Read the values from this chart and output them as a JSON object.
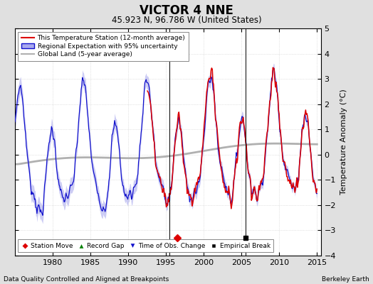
{
  "title": "VICTOR 4 NNE",
  "subtitle": "45.923 N, 96.786 W (United States)",
  "xlabel_left": "Data Quality Controlled and Aligned at Breakpoints",
  "xlabel_right": "Berkeley Earth",
  "ylabel": "Temperature Anomaly (°C)",
  "xlim": [
    1975,
    2015.5
  ],
  "ylim": [
    -4,
    5
  ],
  "yticks": [
    -4,
    -3,
    -2,
    -1,
    0,
    1,
    2,
    3,
    4,
    5
  ],
  "xticks": [
    1980,
    1985,
    1990,
    1995,
    2000,
    2005,
    2010,
    2015
  ],
  "station_move_year": 1996.5,
  "station_move_y": -3.3,
  "empirical_break_year": 2005.5,
  "empirical_break_y": -3.3,
  "vline1_year": 1995.5,
  "vline2_year": 2005.5,
  "red_start_year": 1992.5,
  "background_color": "#e0e0e0",
  "plot_bg_color": "#ffffff",
  "red_color": "#dd0000",
  "blue_color": "#1111cc",
  "blue_fill_color": "#aaaaee",
  "gray_color": "#b0b0b0",
  "seed": 42
}
